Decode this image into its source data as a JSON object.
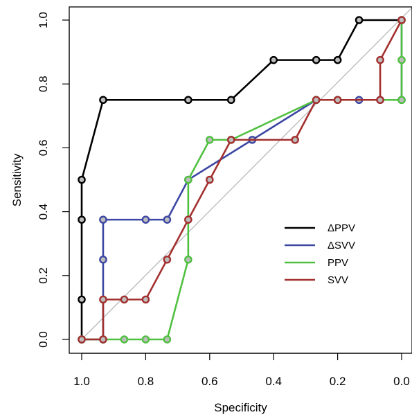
{
  "chart_data": {
    "type": "line",
    "title": "",
    "xlabel": "Specificity",
    "ylabel": "Sensitivity",
    "xlim": [
      1.0,
      0.0
    ],
    "ylim": [
      0.0,
      1.0
    ],
    "x_reversed": true,
    "x_ticks": [
      "1.0",
      "0.8",
      "0.6",
      "0.4",
      "0.2",
      "0.0"
    ],
    "x_tick_values": [
      1.0,
      0.8,
      0.6,
      0.4,
      0.2,
      0.0
    ],
    "y_ticks": [
      "0.0",
      "0.2",
      "0.4",
      "0.6",
      "0.8",
      "1.0"
    ],
    "y_tick_values": [
      0.0,
      0.2,
      0.4,
      0.6,
      0.8,
      1.0
    ],
    "grid": false,
    "diagonal_reference": {
      "from": [
        1.0,
        0.0
      ],
      "to": [
        0.0,
        1.0
      ],
      "color": "#b3b3b3"
    },
    "legend_position": "right",
    "series": [
      {
        "name": "ΔPPV",
        "color": "#000000",
        "x": [
          1.0,
          1.0,
          1.0,
          1.0,
          0.933,
          0.667,
          0.533,
          0.4,
          0.267,
          0.2,
          0.133,
          0.0
        ],
        "y": [
          0.0,
          0.125,
          0.375,
          0.5,
          0.75,
          0.75,
          0.75,
          0.875,
          0.875,
          0.875,
          1.0,
          1.0
        ]
      },
      {
        "name": "ΔSVV",
        "color": "#3c47a3",
        "x": [
          1.0,
          0.933,
          0.933,
          0.933,
          0.8,
          0.733,
          0.667,
          0.467,
          0.267,
          0.2,
          0.133,
          0.067,
          0.0,
          0.0
        ],
        "y": [
          0.0,
          0.0,
          0.25,
          0.375,
          0.375,
          0.375,
          0.5,
          0.625,
          0.75,
          0.75,
          0.75,
          0.75,
          0.75,
          1.0
        ]
      },
      {
        "name": "PPV",
        "color": "#50c040",
        "x": [
          1.0,
          0.933,
          0.867,
          0.8,
          0.733,
          0.667,
          0.667,
          0.6,
          0.533,
          0.267,
          0.2,
          0.0,
          0.0,
          0.0
        ],
        "y": [
          0.0,
          0.0,
          0.0,
          0.0,
          0.0,
          0.25,
          0.5,
          0.625,
          0.625,
          0.75,
          0.75,
          0.75,
          0.875,
          1.0
        ]
      },
      {
        "name": "SVV",
        "color": "#a3302e",
        "x": [
          1.0,
          0.933,
          0.933,
          0.867,
          0.8,
          0.733,
          0.667,
          0.6,
          0.533,
          0.333,
          0.267,
          0.2,
          0.067,
          0.067,
          0.0
        ],
        "y": [
          0.0,
          0.0,
          0.125,
          0.125,
          0.125,
          0.25,
          0.375,
          0.5,
          0.625,
          0.625,
          0.75,
          0.75,
          0.75,
          0.875,
          1.0
        ]
      }
    ]
  }
}
